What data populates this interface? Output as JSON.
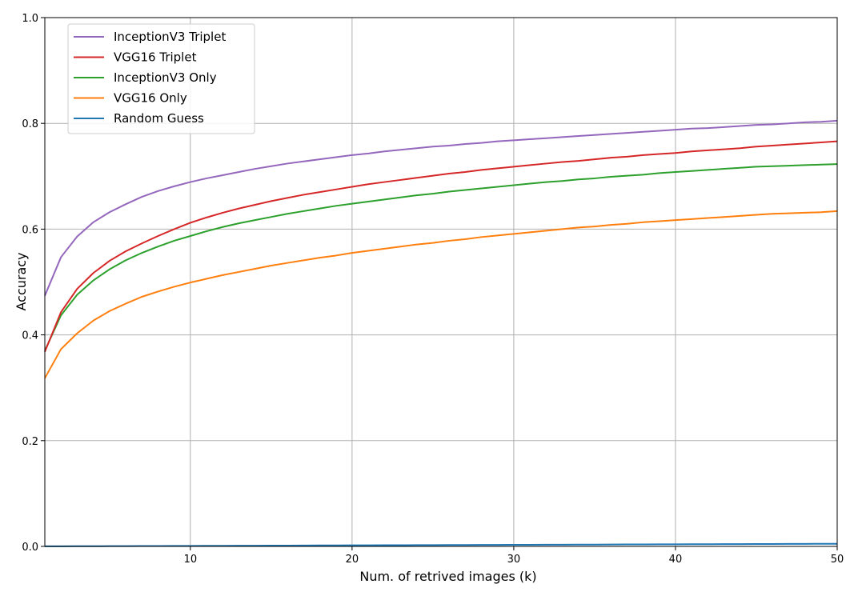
{
  "chart_data": {
    "type": "line",
    "title": "",
    "xlabel": "Num. of retrived images (k)",
    "ylabel": "Accuracy",
    "xlim": [
      1,
      50
    ],
    "ylim": [
      0.0,
      1.0
    ],
    "xticks": [
      "10",
      "20",
      "30",
      "40",
      "50"
    ],
    "yticks": [
      "0.0",
      "0.2",
      "0.4",
      "0.6",
      "0.8",
      "1.0"
    ],
    "grid": true,
    "legend_position": "top-left",
    "x": [
      1,
      2,
      3,
      4,
      5,
      6,
      7,
      8,
      9,
      10,
      11,
      12,
      13,
      14,
      15,
      16,
      17,
      18,
      19,
      20,
      21,
      22,
      23,
      24,
      25,
      26,
      27,
      28,
      29,
      30,
      31,
      32,
      33,
      34,
      35,
      36,
      37,
      38,
      39,
      40,
      41,
      42,
      43,
      44,
      45,
      46,
      47,
      48,
      49,
      50
    ],
    "series": [
      {
        "name": "InceptionV3 Triplet",
        "color": "#9467bd",
        "values": [
          0.474,
          0.547,
          0.586,
          0.613,
          0.632,
          0.647,
          0.661,
          0.672,
          0.681,
          0.689,
          0.696,
          0.702,
          0.708,
          0.714,
          0.719,
          0.724,
          0.728,
          0.732,
          0.736,
          0.74,
          0.743,
          0.747,
          0.75,
          0.753,
          0.756,
          0.758,
          0.761,
          0.763,
          0.766,
          0.768,
          0.77,
          0.772,
          0.774,
          0.776,
          0.778,
          0.78,
          0.782,
          0.784,
          0.786,
          0.788,
          0.79,
          0.791,
          0.793,
          0.795,
          0.797,
          0.798,
          0.8,
          0.802,
          0.803,
          0.805
        ]
      },
      {
        "name": "VGG16 Triplet",
        "color": "#d62728",
        "values": [
          0.368,
          0.443,
          0.487,
          0.517,
          0.54,
          0.558,
          0.573,
          0.587,
          0.6,
          0.612,
          0.622,
          0.631,
          0.639,
          0.646,
          0.653,
          0.659,
          0.665,
          0.67,
          0.675,
          0.68,
          0.685,
          0.689,
          0.693,
          0.697,
          0.701,
          0.705,
          0.708,
          0.712,
          0.715,
          0.718,
          0.721,
          0.724,
          0.727,
          0.729,
          0.732,
          0.735,
          0.737,
          0.74,
          0.742,
          0.744,
          0.747,
          0.749,
          0.751,
          0.753,
          0.756,
          0.758,
          0.76,
          0.762,
          0.764,
          0.766
        ]
      },
      {
        "name": "InceptionV3 Only",
        "color": "#2ca02c",
        "values": [
          0.37,
          0.437,
          0.476,
          0.503,
          0.524,
          0.541,
          0.555,
          0.567,
          0.578,
          0.587,
          0.596,
          0.604,
          0.611,
          0.617,
          0.623,
          0.629,
          0.634,
          0.639,
          0.644,
          0.648,
          0.652,
          0.656,
          0.66,
          0.664,
          0.667,
          0.671,
          0.674,
          0.677,
          0.68,
          0.683,
          0.686,
          0.689,
          0.691,
          0.694,
          0.696,
          0.699,
          0.701,
          0.703,
          0.706,
          0.708,
          0.71,
          0.712,
          0.714,
          0.716,
          0.718,
          0.719,
          0.72,
          0.721,
          0.722,
          0.723
        ]
      },
      {
        "name": "VGG16 Only",
        "color": "#ff7f0e",
        "values": [
          0.318,
          0.373,
          0.403,
          0.427,
          0.445,
          0.459,
          0.472,
          0.482,
          0.491,
          0.499,
          0.506,
          0.513,
          0.519,
          0.525,
          0.531,
          0.536,
          0.541,
          0.546,
          0.55,
          0.555,
          0.559,
          0.563,
          0.567,
          0.571,
          0.574,
          0.578,
          0.581,
          0.585,
          0.588,
          0.591,
          0.594,
          0.597,
          0.6,
          0.603,
          0.605,
          0.608,
          0.61,
          0.613,
          0.615,
          0.617,
          0.619,
          0.621,
          0.623,
          0.625,
          0.627,
          0.629,
          0.63,
          0.631,
          0.632,
          0.634
        ]
      },
      {
        "name": "Random Guess",
        "color": "#1f77b4",
        "values": [
          0.0001,
          0.0002,
          0.0003,
          0.0004,
          0.0005,
          0.0006,
          0.0007,
          0.0008,
          0.0009,
          0.001,
          0.0011,
          0.0012,
          0.0013,
          0.0014,
          0.0015,
          0.0016,
          0.0017,
          0.0018,
          0.0019,
          0.002,
          0.0021,
          0.0022,
          0.0023,
          0.0024,
          0.0025,
          0.0026,
          0.0027,
          0.0028,
          0.0029,
          0.003,
          0.0031,
          0.0032,
          0.0033,
          0.0034,
          0.0035,
          0.0036,
          0.0037,
          0.0038,
          0.0039,
          0.004,
          0.0041,
          0.0042,
          0.0043,
          0.0044,
          0.0045,
          0.0046,
          0.0047,
          0.0048,
          0.0049,
          0.005
        ]
      }
    ]
  }
}
